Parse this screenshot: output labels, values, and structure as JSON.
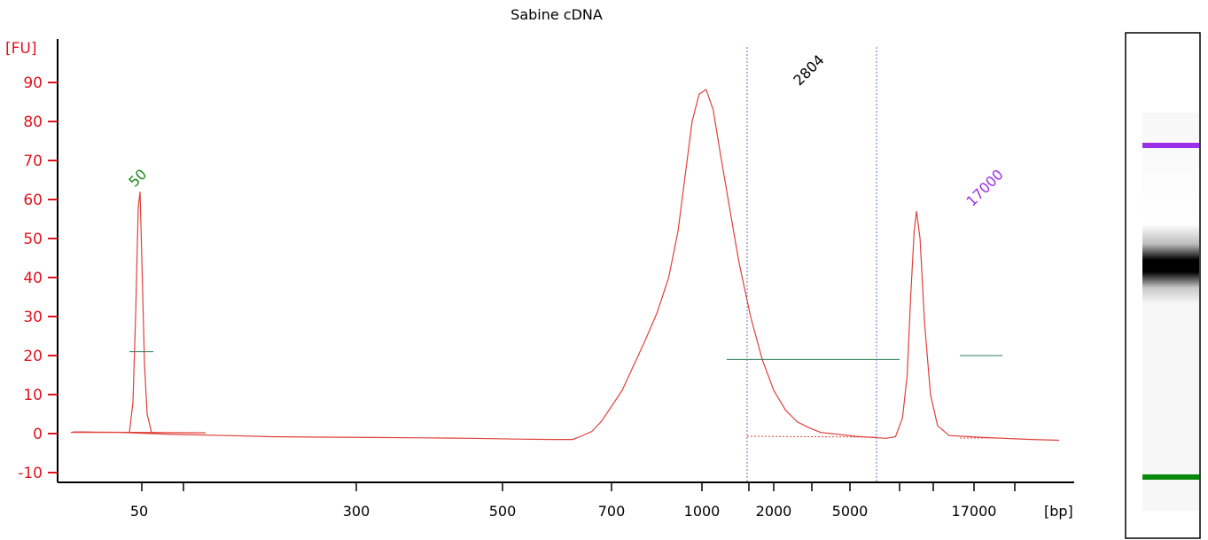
{
  "chart_data": {
    "type": "line",
    "title": "Sabine cDNA",
    "ylabel": "[FU]",
    "xlabel": "[bp]",
    "ylim": [
      -12,
      100
    ],
    "yticks": [
      -10,
      0,
      10,
      20,
      30,
      40,
      50,
      60,
      70,
      80,
      90
    ],
    "xtick_labels": [
      "50",
      "300",
      "500",
      "700",
      "1000",
      "2000",
      "5000",
      "17000"
    ],
    "grid": false,
    "peaks": [
      {
        "label": "50",
        "size_bp": 50,
        "height": 62,
        "color": "#1a8a1a"
      },
      {
        "label": "2804",
        "size_bp": 2804,
        "height": 88,
        "color": "#000000"
      },
      {
        "label": "17000",
        "size_bp": 17000,
        "height": 57,
        "color": "#9b30e8"
      }
    ],
    "series": [
      {
        "color": "#e0403a",
        "points": [
          [
            0.0,
            0.4
          ],
          [
            2.0,
            0.3
          ],
          [
            4.3,
            -0.2
          ],
          [
            6.6,
            -0.5
          ],
          [
            8.5,
            -0.8
          ],
          [
            10.6,
            -0.9
          ],
          [
            13.0,
            -1.0
          ],
          [
            15.0,
            -1.1
          ],
          [
            17.0,
            -1.2
          ],
          [
            19.0,
            -1.4
          ],
          [
            20.5,
            -1.5
          ],
          [
            21.4,
            -1.5
          ],
          [
            21.7,
            -0.8
          ],
          [
            22.2,
            0.5
          ],
          [
            22.6,
            3.0
          ],
          [
            23.0,
            6.5
          ],
          [
            23.5,
            11.0
          ],
          [
            24.0,
            17.5
          ],
          [
            24.5,
            24.0
          ],
          [
            25.0,
            31.0
          ],
          [
            25.5,
            40.0
          ],
          [
            25.9,
            52.0
          ],
          [
            26.2,
            66.0
          ],
          [
            26.5,
            80.0
          ],
          [
            26.8,
            87.0
          ],
          [
            27.1,
            88.2
          ],
          [
            27.4,
            83.0
          ],
          [
            27.7,
            72.0
          ],
          [
            28.1,
            58.0
          ],
          [
            28.5,
            44.0
          ],
          [
            29.0,
            30.0
          ],
          [
            29.5,
            19.0
          ],
          [
            30.0,
            11.0
          ],
          [
            30.5,
            6.0
          ],
          [
            31.0,
            3.0
          ],
          [
            31.5,
            1.5
          ],
          [
            32.0,
            0.3
          ],
          [
            33.5,
            -0.7
          ],
          [
            34.8,
            -1.2
          ],
          [
            35.2,
            -0.8
          ],
          [
            35.5,
            4.0
          ],
          [
            35.7,
            15.0
          ],
          [
            35.85,
            35.0
          ],
          [
            36.0,
            52.0
          ],
          [
            36.1,
            57.0
          ],
          [
            36.25,
            50.0
          ],
          [
            36.45,
            28.0
          ],
          [
            36.7,
            10.0
          ],
          [
            37.0,
            2.0
          ],
          [
            37.5,
            -0.5
          ],
          [
            39.0,
            -1.0
          ],
          [
            41.0,
            -1.5
          ],
          [
            42.2,
            -1.7
          ]
        ]
      }
    ],
    "ladder_bands": [
      {
        "color": "#9b30e8"
      },
      {
        "color": "#000000"
      },
      {
        "color": "#0a8a0a"
      }
    ]
  }
}
